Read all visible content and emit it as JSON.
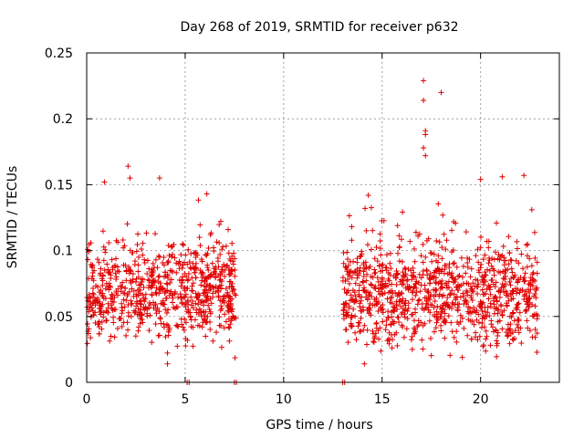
{
  "chart_data": {
    "type": "scatter",
    "title": "Day 268 of 2019, SRMTID for receiver p632",
    "xlabel": "GPS time / hours",
    "ylabel": "SRMTID / TECUs",
    "xlim": [
      0,
      24
    ],
    "ylim": [
      0,
      0.25
    ],
    "xticks": [
      0,
      5,
      10,
      15,
      20
    ],
    "xtick_labels": [
      "0",
      "5",
      "10",
      "15",
      "20"
    ],
    "yticks": [
      0,
      0.05,
      0.1,
      0.15,
      0.2,
      0.25
    ],
    "ytick_labels": [
      "0",
      "0.05",
      "0.1",
      "0.15",
      "0.2",
      "0.25"
    ],
    "grid": true,
    "marker": "+",
    "color": "#e00000",
    "segments": [
      {
        "x_start": 0.0,
        "x_end": 7.6,
        "y_center": 0.068,
        "y_spread": 0.018,
        "count": 760
      },
      {
        "x_start": 13.0,
        "x_end": 22.9,
        "y_center": 0.066,
        "y_spread": 0.018,
        "count": 990
      }
    ],
    "zero_points": [
      5.1,
      5.2,
      7.5,
      7.6,
      13.0,
      13.1
    ],
    "notable_points": [
      {
        "x": 0.9,
        "y": 0.152
      },
      {
        "x": 2.1,
        "y": 0.164
      },
      {
        "x": 2.2,
        "y": 0.155
      },
      {
        "x": 3.7,
        "y": 0.155
      },
      {
        "x": 6.1,
        "y": 0.143
      },
      {
        "x": 14.3,
        "y": 0.142
      },
      {
        "x": 17.1,
        "y": 0.229
      },
      {
        "x": 17.1,
        "y": 0.214
      },
      {
        "x": 17.2,
        "y": 0.191
      },
      {
        "x": 17.2,
        "y": 0.188
      },
      {
        "x": 17.1,
        "y": 0.178
      },
      {
        "x": 17.2,
        "y": 0.172
      },
      {
        "x": 18.0,
        "y": 0.22
      },
      {
        "x": 20.0,
        "y": 0.154
      },
      {
        "x": 21.1,
        "y": 0.156
      },
      {
        "x": 22.2,
        "y": 0.157
      },
      {
        "x": 22.6,
        "y": 0.131
      },
      {
        "x": 14.1,
        "y": 0.014
      },
      {
        "x": 4.1,
        "y": 0.014
      }
    ]
  }
}
